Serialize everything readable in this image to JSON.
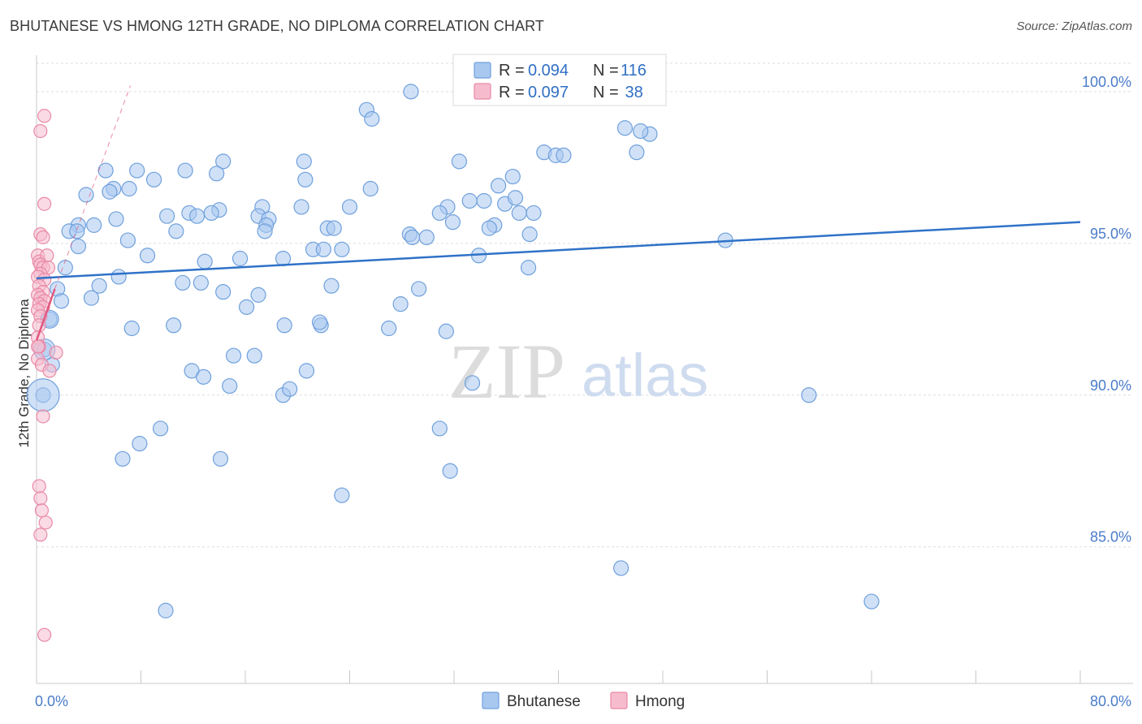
{
  "title": "BHUTANESE VS HMONG 12TH GRADE, NO DIPLOMA CORRELATION CHART",
  "source": "Source: ZipAtlas.com",
  "colors": {
    "blue_fill": "#a9c8f0",
    "blue_stroke": "#6fa0dc",
    "blue_line": "#2f72c8",
    "pink_fill": "#f6bccd",
    "pink_stroke": "#e989a6",
    "pink_line": "#e2587f",
    "grid": "#dddddd",
    "axis_text": "#4a7cc9"
  },
  "legend": {
    "rows": [
      {
        "r_label": "R = ",
        "r_value": "0.094",
        "n_label": "N = ",
        "n_value": "116",
        "series": "blue"
      },
      {
        "r_label": "R = ",
        "r_value": "0.097",
        "n_label": "N = ",
        "n_value": " 38",
        "series": "pink"
      }
    ]
  },
  "watermark": {
    "zip": "ZIP",
    "atlas": "atlas"
  },
  "chart_data": {
    "type": "scatter",
    "title": "BHUTANESE VS HMONG 12TH GRADE, NO DIPLOMA CORRELATION CHART",
    "xlabel": "",
    "ylabel": "12th Grade, No Diploma",
    "xlim": [
      0,
      80
    ],
    "ylim": [
      80.5,
      101.2
    ],
    "x_tick_labels": [
      {
        "value": 0,
        "label": "0.0%"
      },
      {
        "value": 80,
        "label": "80.0%"
      }
    ],
    "x_minor_ticks": [
      0,
      8,
      16,
      24,
      32,
      40,
      48,
      56,
      64,
      72,
      80
    ],
    "y_ticks": [
      {
        "value": 85,
        "label": "85.0%"
      },
      {
        "value": 90,
        "label": "90.0%"
      },
      {
        "value": 95,
        "label": "95.0%"
      },
      {
        "value": 100,
        "label": "100.0%"
      }
    ],
    "legend_position": "bottom-center",
    "series": [
      {
        "name": "Bhutanese",
        "color": "blue",
        "r": 0.094,
        "n": 116,
        "trend": {
          "x": [
            0,
            80
          ],
          "y": [
            93.85,
            95.7
          ]
        },
        "points": [
          {
            "x": 25.3,
            "y": 99.4
          },
          {
            "x": 25.7,
            "y": 99.1
          },
          {
            "x": 28.7,
            "y": 100.0
          },
          {
            "x": 40.6,
            "y": 100.0
          },
          {
            "x": 43.9,
            "y": 100.0
          },
          {
            "x": 45.1,
            "y": 98.8
          },
          {
            "x": 47.0,
            "y": 98.6
          },
          {
            "x": 46.3,
            "y": 98.7
          },
          {
            "x": 46.0,
            "y": 98.0
          },
          {
            "x": 38.9,
            "y": 98.0
          },
          {
            "x": 39.8,
            "y": 97.9
          },
          {
            "x": 40.4,
            "y": 97.9
          },
          {
            "x": 36.5,
            "y": 97.2
          },
          {
            "x": 35.4,
            "y": 96.9
          },
          {
            "x": 32.4,
            "y": 97.7
          },
          {
            "x": 33.2,
            "y": 96.4
          },
          {
            "x": 34.3,
            "y": 96.4
          },
          {
            "x": 35.9,
            "y": 96.3
          },
          {
            "x": 36.7,
            "y": 96.5
          },
          {
            "x": 37.0,
            "y": 96.0
          },
          {
            "x": 38.1,
            "y": 96.0
          },
          {
            "x": 31.5,
            "y": 96.2
          },
          {
            "x": 30.9,
            "y": 96.0
          },
          {
            "x": 31.9,
            "y": 95.7
          },
          {
            "x": 35.1,
            "y": 95.6
          },
          {
            "x": 34.7,
            "y": 95.5
          },
          {
            "x": 37.8,
            "y": 95.3
          },
          {
            "x": 28.6,
            "y": 95.3
          },
          {
            "x": 28.8,
            "y": 95.2
          },
          {
            "x": 29.9,
            "y": 95.2
          },
          {
            "x": 33.9,
            "y": 94.6
          },
          {
            "x": 37.7,
            "y": 94.2
          },
          {
            "x": 52.8,
            "y": 95.1
          },
          {
            "x": 25.6,
            "y": 96.8
          },
          {
            "x": 24.0,
            "y": 96.2
          },
          {
            "x": 22.3,
            "y": 95.5
          },
          {
            "x": 22.8,
            "y": 95.5
          },
          {
            "x": 23.4,
            "y": 94.8
          },
          {
            "x": 21.2,
            "y": 94.8
          },
          {
            "x": 22.0,
            "y": 94.8
          },
          {
            "x": 21.8,
            "y": 92.3
          },
          {
            "x": 22.6,
            "y": 93.6
          },
          {
            "x": 20.3,
            "y": 96.2
          },
          {
            "x": 20.5,
            "y": 97.7
          },
          {
            "x": 20.6,
            "y": 97.1
          },
          {
            "x": 17.3,
            "y": 96.2
          },
          {
            "x": 17.0,
            "y": 95.9
          },
          {
            "x": 17.8,
            "y": 95.8
          },
          {
            "x": 17.6,
            "y": 95.6
          },
          {
            "x": 17.5,
            "y": 95.4
          },
          {
            "x": 18.9,
            "y": 94.5
          },
          {
            "x": 17.0,
            "y": 93.3
          },
          {
            "x": 16.1,
            "y": 92.9
          },
          {
            "x": 15.6,
            "y": 94.5
          },
          {
            "x": 14.3,
            "y": 97.7
          },
          {
            "x": 13.8,
            "y": 97.3
          },
          {
            "x": 14.0,
            "y": 96.1
          },
          {
            "x": 13.4,
            "y": 96.0
          },
          {
            "x": 11.4,
            "y": 97.4
          },
          {
            "x": 11.7,
            "y": 96.0
          },
          {
            "x": 12.3,
            "y": 95.9
          },
          {
            "x": 12.9,
            "y": 94.4
          },
          {
            "x": 11.2,
            "y": 93.7
          },
          {
            "x": 12.6,
            "y": 93.7
          },
          {
            "x": 14.3,
            "y": 93.4
          },
          {
            "x": 9.0,
            "y": 97.1
          },
          {
            "x": 10.0,
            "y": 95.9
          },
          {
            "x": 10.7,
            "y": 95.4
          },
          {
            "x": 8.5,
            "y": 94.6
          },
          {
            "x": 7.7,
            "y": 97.4
          },
          {
            "x": 7.1,
            "y": 96.8
          },
          {
            "x": 5.3,
            "y": 97.4
          },
          {
            "x": 5.9,
            "y": 96.8
          },
          {
            "x": 5.6,
            "y": 96.7
          },
          {
            "x": 3.8,
            "y": 96.6
          },
          {
            "x": 6.1,
            "y": 95.8
          },
          {
            "x": 4.4,
            "y": 95.6
          },
          {
            "x": 3.2,
            "y": 95.6
          },
          {
            "x": 2.5,
            "y": 95.4
          },
          {
            "x": 3.1,
            "y": 95.4
          },
          {
            "x": 7.0,
            "y": 95.1
          },
          {
            "x": 3.2,
            "y": 94.9
          },
          {
            "x": 2.2,
            "y": 94.2
          },
          {
            "x": 6.3,
            "y": 93.9
          },
          {
            "x": 4.8,
            "y": 93.6
          },
          {
            "x": 1.6,
            "y": 93.5
          },
          {
            "x": 4.2,
            "y": 93.2
          },
          {
            "x": 1.9,
            "y": 93.1
          },
          {
            "x": 1.0,
            "y": 92.5
          },
          {
            "x": 7.3,
            "y": 92.2
          },
          {
            "x": 10.5,
            "y": 92.3
          },
          {
            "x": 0.6,
            "y": 91.5
          },
          {
            "x": 1.2,
            "y": 91.0
          },
          {
            "x": 0.5,
            "y": 90.0
          },
          {
            "x": 11.9,
            "y": 90.8
          },
          {
            "x": 12.8,
            "y": 90.6
          },
          {
            "x": 14.8,
            "y": 90.3
          },
          {
            "x": 15.1,
            "y": 91.3
          },
          {
            "x": 16.7,
            "y": 91.3
          },
          {
            "x": 18.9,
            "y": 90.0
          },
          {
            "x": 19.4,
            "y": 90.2
          },
          {
            "x": 20.7,
            "y": 90.8
          },
          {
            "x": 19.0,
            "y": 92.3
          },
          {
            "x": 21.7,
            "y": 92.4
          },
          {
            "x": 27.0,
            "y": 92.2
          },
          {
            "x": 27.9,
            "y": 93.0
          },
          {
            "x": 29.3,
            "y": 93.5
          },
          {
            "x": 31.4,
            "y": 92.1
          },
          {
            "x": 33.4,
            "y": 90.4
          },
          {
            "x": 30.9,
            "y": 88.9
          },
          {
            "x": 31.7,
            "y": 87.5
          },
          {
            "x": 23.4,
            "y": 86.7
          },
          {
            "x": 9.5,
            "y": 88.9
          },
          {
            "x": 7.9,
            "y": 88.4
          },
          {
            "x": 6.6,
            "y": 87.9
          },
          {
            "x": 14.1,
            "y": 87.9
          },
          {
            "x": 9.9,
            "y": 82.9
          },
          {
            "x": 44.8,
            "y": 84.3
          },
          {
            "x": 59.2,
            "y": 90.0
          },
          {
            "x": 64.0,
            "y": 83.2
          }
        ]
      },
      {
        "name": "Hmong",
        "color": "pink",
        "r": 0.097,
        "n": 38,
        "trend_solid": {
          "x": [
            0,
            1.4
          ],
          "y": [
            91.8,
            93.5
          ]
        },
        "trend_dashed": {
          "x": [
            1.4,
            7.2
          ],
          "y": [
            93.5,
            100.2
          ]
        },
        "points": [
          {
            "x": 0.6,
            "y": 99.2
          },
          {
            "x": 0.3,
            "y": 98.7
          },
          {
            "x": 0.6,
            "y": 96.3
          },
          {
            "x": 0.3,
            "y": 95.3
          },
          {
            "x": 0.5,
            "y": 95.2
          },
          {
            "x": 0.1,
            "y": 94.6
          },
          {
            "x": 0.2,
            "y": 94.4
          },
          {
            "x": 0.8,
            "y": 94.6
          },
          {
            "x": 0.3,
            "y": 94.3
          },
          {
            "x": 0.5,
            "y": 94.2
          },
          {
            "x": 0.9,
            "y": 94.2
          },
          {
            "x": 0.3,
            "y": 94.0
          },
          {
            "x": 0.1,
            "y": 93.9
          },
          {
            "x": 0.6,
            "y": 93.8
          },
          {
            "x": 0.2,
            "y": 93.6
          },
          {
            "x": 0.5,
            "y": 93.4
          },
          {
            "x": 0.1,
            "y": 93.3
          },
          {
            "x": 0.3,
            "y": 93.2
          },
          {
            "x": 0.6,
            "y": 93.1
          },
          {
            "x": 0.2,
            "y": 93.0
          },
          {
            "x": 0.5,
            "y": 92.9
          },
          {
            "x": 0.1,
            "y": 92.8
          },
          {
            "x": 0.3,
            "y": 92.6
          },
          {
            "x": 0.2,
            "y": 92.3
          },
          {
            "x": 0.1,
            "y": 91.9
          },
          {
            "x": 0.2,
            "y": 91.6
          },
          {
            "x": 1.5,
            "y": 91.4
          },
          {
            "x": 0.1,
            "y": 91.2
          },
          {
            "x": 0.4,
            "y": 91.0
          },
          {
            "x": 1.0,
            "y": 90.8
          },
          {
            "x": 0.5,
            "y": 89.3
          },
          {
            "x": 0.2,
            "y": 87.0
          },
          {
            "x": 0.3,
            "y": 86.6
          },
          {
            "x": 0.4,
            "y": 86.2
          },
          {
            "x": 0.7,
            "y": 85.8
          },
          {
            "x": 0.3,
            "y": 85.4
          },
          {
            "x": 0.6,
            "y": 82.1
          },
          {
            "x": 0.1,
            "y": 91.6
          }
        ]
      }
    ]
  }
}
